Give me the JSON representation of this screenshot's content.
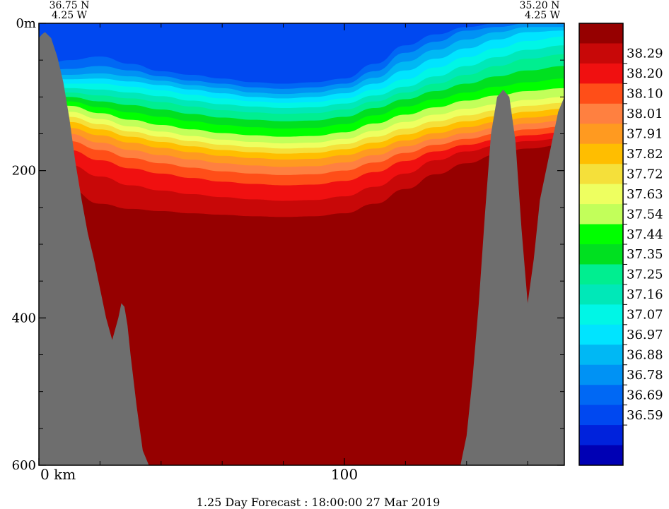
{
  "chart_data": {
    "type": "heatmap",
    "title": "",
    "corner_left": {
      "lat": "36.75 N",
      "lon": "4.25 W"
    },
    "corner_right": {
      "lat": "35.20 N",
      "lon": "4.25 W"
    },
    "xlabel": "",
    "ylabel": "",
    "x_unit": "km",
    "y_unit": "m",
    "xlim": [
      0,
      172
    ],
    "ylim": [
      0,
      600
    ],
    "x_ticks": [
      {
        "value": 0,
        "label": "0 km"
      },
      {
        "value": 100,
        "label": "100"
      }
    ],
    "x_minor_ticks": [
      20,
      40,
      60,
      80,
      120,
      140,
      160
    ],
    "y_ticks": [
      {
        "value": 0,
        "label": "0m"
      },
      {
        "value": 200,
        "label": "200"
      },
      {
        "value": 400,
        "label": "400"
      },
      {
        "value": 600,
        "label": "600"
      }
    ],
    "y_minor_ticks": [
      50,
      100,
      150,
      250,
      300,
      350,
      450,
      500,
      550
    ],
    "colorbar": {
      "levels": [
        36.59,
        36.69,
        36.78,
        36.88,
        36.97,
        37.07,
        37.16,
        37.25,
        37.35,
        37.44,
        37.54,
        37.63,
        37.72,
        37.82,
        37.91,
        38.01,
        38.1,
        38.2,
        38.29
      ],
      "level_labels": [
        "36.59",
        "36.69",
        "36.78",
        "36.88",
        "36.97",
        "37.07",
        "37.16",
        "37.25",
        "37.35",
        "37.44",
        "37.54",
        "37.63",
        "37.72",
        "37.82",
        "37.91",
        "38.01",
        "38.10",
        "38.20",
        "38.29"
      ],
      "colors": [
        "#0000b4",
        "#0022dc",
        "#0048f0",
        "#0068f4",
        "#0092f4",
        "#00b8f4",
        "#00e4ff",
        "#00f6e6",
        "#00e8b8",
        "#00ee90",
        "#00e020",
        "#00ff00",
        "#c2ff5a",
        "#eeff60",
        "#f5e03a",
        "#ffbe00",
        "#ff9a20",
        "#ff8040",
        "#ff4e18",
        "#f01010",
        "#c80808",
        "#960000"
      ]
    },
    "field_x": [
      0,
      10,
      20,
      30,
      40,
      50,
      60,
      70,
      80,
      90,
      100,
      110,
      120,
      130,
      140,
      150,
      160,
      172
    ],
    "isolines": [
      {
        "level": 36.59,
        "depth": [
          60,
          50,
          45,
          55,
          65,
          70,
          75,
          80,
          82,
          80,
          75,
          55,
          30,
          15,
          5,
          0,
          0,
          0
        ]
      },
      {
        "level": 36.69,
        "depth": [
          65,
          62,
          58,
          64,
          72,
          78,
          82,
          87,
          89,
          87,
          82,
          65,
          40,
          25,
          10,
          5,
          0,
          0
        ]
      },
      {
        "level": 36.78,
        "depth": [
          70,
          70,
          68,
          72,
          78,
          84,
          88,
          94,
          96,
          94,
          88,
          74,
          52,
          36,
          22,
          12,
          5,
          5
        ]
      },
      {
        "level": 36.88,
        "depth": [
          74,
          76,
          75,
          79,
          84,
          90,
          95,
          100,
          102,
          100,
          95,
          82,
          64,
          48,
          34,
          22,
          12,
          10
        ]
      },
      {
        "level": 36.97,
        "depth": [
          78,
          82,
          82,
          86,
          91,
          97,
          102,
          106,
          108,
          107,
          102,
          90,
          76,
          60,
          46,
          34,
          24,
          18
        ]
      },
      {
        "level": 37.07,
        "depth": [
          82,
          88,
          90,
          94,
          99,
          105,
          110,
          113,
          115,
          114,
          109,
          98,
          86,
          72,
          58,
          46,
          36,
          30
        ]
      },
      {
        "level": 37.16,
        "depth": [
          86,
          94,
          98,
          102,
          107,
          113,
          118,
          121,
          123,
          122,
          117,
          106,
          94,
          82,
          70,
          58,
          48,
          42
        ]
      },
      {
        "level": 37.25,
        "depth": [
          90,
          100,
          106,
          111,
          117,
          123,
          128,
          131,
          133,
          132,
          127,
          115,
          103,
          92,
          82,
          72,
          64,
          58
        ]
      },
      {
        "level": 37.35,
        "depth": [
          95,
          106,
          114,
          121,
          127,
          133,
          138,
          141,
          143,
          142,
          137,
          125,
          113,
          103,
          94,
          86,
          80,
          75
        ]
      },
      {
        "level": 37.44,
        "depth": [
          100,
          112,
          122,
          131,
          138,
          144,
          149,
          152,
          154,
          153,
          148,
          136,
          124,
          114,
          105,
          98,
          92,
          88
        ]
      },
      {
        "level": 37.54,
        "depth": [
          106,
          120,
          130,
          140,
          147,
          153,
          158,
          161,
          163,
          162,
          157,
          146,
          134,
          124,
          116,
          110,
          104,
          100
        ]
      },
      {
        "level": 37.63,
        "depth": [
          112,
          127,
          137,
          147,
          154,
          160,
          165,
          168,
          170,
          169,
          164,
          154,
          143,
          133,
          125,
          118,
          112,
          108
        ]
      },
      {
        "level": 37.72,
        "depth": [
          118,
          134,
          144,
          154,
          161,
          167,
          172,
          175,
          177,
          176,
          171,
          162,
          151,
          141,
          133,
          126,
          120,
          116
        ]
      },
      {
        "level": 37.82,
        "depth": [
          124,
          142,
          152,
          162,
          169,
          175,
          180,
          183,
          185,
          184,
          179,
          170,
          159,
          149,
          141,
          134,
          128,
          124
        ]
      },
      {
        "level": 37.91,
        "depth": [
          130,
          150,
          162,
          172,
          179,
          185,
          190,
          193,
          195,
          194,
          189,
          179,
          167,
          157,
          149,
          142,
          136,
          132
        ]
      },
      {
        "level": 38.01,
        "depth": [
          137,
          160,
          172,
          183,
          190,
          196,
          201,
          204,
          206,
          205,
          200,
          189,
          176,
          165,
          157,
          150,
          144,
          140
        ]
      },
      {
        "level": 38.1,
        "depth": [
          146,
          172,
          186,
          197,
          204,
          210,
          215,
          218,
          220,
          219,
          214,
          202,
          187,
          174,
          165,
          158,
          152,
          148
        ]
      },
      {
        "level": 38.2,
        "depth": [
          160,
          192,
          208,
          220,
          227,
          232,
          236,
          239,
          241,
          240,
          235,
          222,
          204,
          186,
          174,
          166,
          160,
          156
        ]
      },
      {
        "level": 38.29,
        "depth": [
          185,
          225,
          245,
          252,
          255,
          258,
          260,
          262,
          263,
          262,
          258,
          245,
          225,
          205,
          190,
          178,
          170,
          165
        ]
      }
    ],
    "bathymetry": {
      "x": [
        0,
        1,
        2,
        4,
        6,
        8,
        10,
        12,
        14,
        16,
        18,
        20,
        22,
        24,
        26,
        27,
        28,
        29,
        30,
        32,
        34,
        36,
        38,
        40,
        60,
        80,
        100,
        120,
        138,
        140,
        142,
        144,
        146,
        148,
        150,
        152,
        154,
        156,
        158,
        160,
        162,
        164,
        166,
        168,
        170,
        172
      ],
      "depth": [
        20,
        15,
        12,
        20,
        45,
        80,
        130,
        190,
        240,
        285,
        320,
        360,
        400,
        430,
        400,
        380,
        385,
        410,
        450,
        520,
        580,
        600,
        600,
        600,
        600,
        600,
        600,
        600,
        600,
        560,
        480,
        380,
        260,
        150,
        100,
        90,
        100,
        160,
        280,
        380,
        320,
        240,
        200,
        160,
        120,
        100
      ]
    },
    "footer": "1.25 Day Forecast : 18:00:00  27 Mar 2019"
  }
}
